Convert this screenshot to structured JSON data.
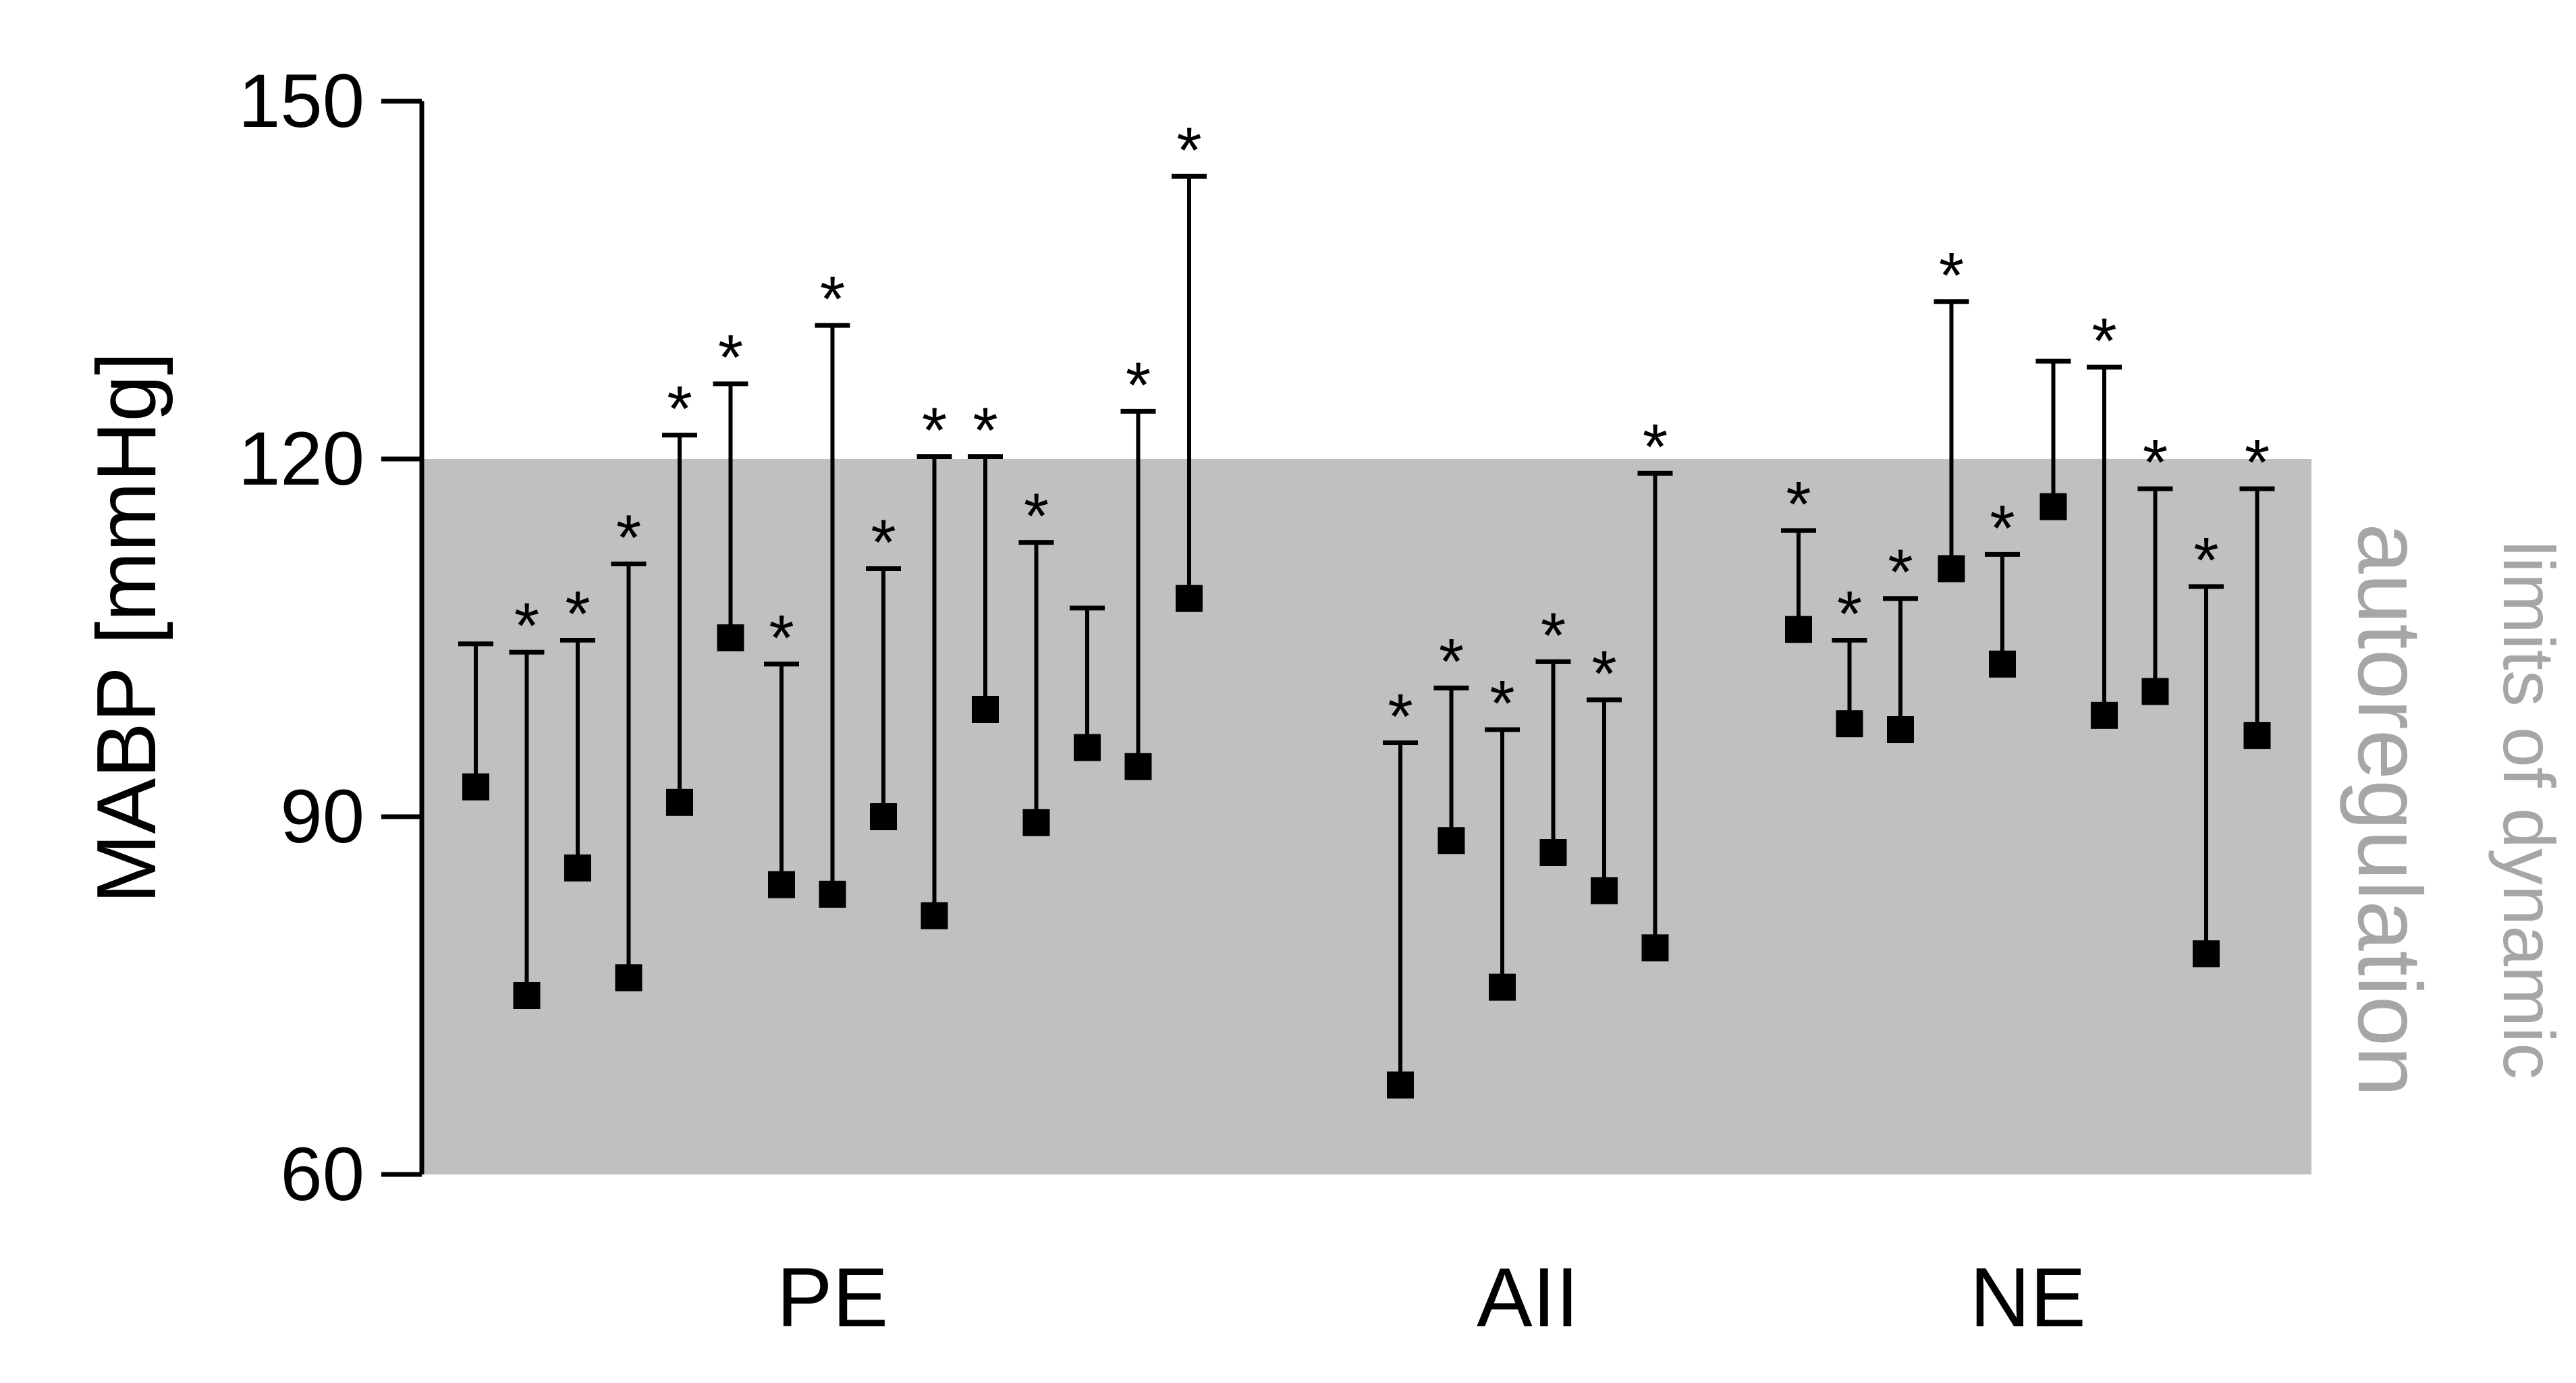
{
  "chart_data": {
    "type": "range",
    "ylabel": "MABP [mmHg]",
    "ylim": [
      60,
      150
    ],
    "yticks": [
      "60",
      "90",
      "120",
      "150"
    ],
    "band": {
      "range": [
        60,
        120
      ],
      "label_line1": "limits of dynamic",
      "label_line2": "autoregulation",
      "color": "#c0c0c0",
      "label_color": "#a6a6a6"
    },
    "groups": [
      {
        "label": "PE",
        "subjects": [
          {
            "baseline": 92.5,
            "peak": 104.5,
            "significant": false
          },
          {
            "baseline": 75.0,
            "peak": 103.8,
            "significant": true
          },
          {
            "baseline": 85.7,
            "peak": 104.8,
            "significant": true
          },
          {
            "baseline": 76.5,
            "peak": 111.2,
            "significant": true
          },
          {
            "baseline": 91.2,
            "peak": 122.0,
            "significant": true
          },
          {
            "baseline": 105.0,
            "peak": 126.3,
            "significant": true
          },
          {
            "baseline": 84.3,
            "peak": 102.8,
            "significant": true
          },
          {
            "baseline": 83.5,
            "peak": 131.2,
            "significant": true
          },
          {
            "baseline": 90.0,
            "peak": 110.8,
            "significant": true
          },
          {
            "baseline": 81.7,
            "peak": 120.2,
            "significant": true
          },
          {
            "baseline": 99.0,
            "peak": 120.2,
            "significant": true
          },
          {
            "baseline": 89.5,
            "peak": 113.0,
            "significant": true
          },
          {
            "baseline": 95.8,
            "peak": 107.5,
            "significant": false
          },
          {
            "baseline": 94.2,
            "peak": 124.0,
            "significant": true
          },
          {
            "baseline": 108.3,
            "peak": 143.7,
            "significant": true
          }
        ]
      },
      {
        "label": "AII",
        "subjects": [
          {
            "baseline": 67.5,
            "peak": 96.2,
            "significant": true
          },
          {
            "baseline": 88.0,
            "peak": 100.8,
            "significant": true
          },
          {
            "baseline": 75.7,
            "peak": 97.3,
            "significant": true
          },
          {
            "baseline": 87.0,
            "peak": 103.0,
            "significant": true
          },
          {
            "baseline": 83.8,
            "peak": 99.8,
            "significant": true
          },
          {
            "baseline": 79.0,
            "peak": 118.8,
            "significant": true
          }
        ]
      },
      {
        "label": "NE",
        "subjects": [
          {
            "baseline": 105.7,
            "peak": 114.0,
            "significant": true
          },
          {
            "baseline": 97.8,
            "peak": 104.8,
            "significant": true
          },
          {
            "baseline": 97.3,
            "peak": 108.3,
            "significant": true
          },
          {
            "baseline": 110.8,
            "peak": 133.2,
            "significant": true
          },
          {
            "baseline": 102.8,
            "peak": 112.0,
            "significant": true
          },
          {
            "baseline": 116.0,
            "peak": 128.2,
            "significant": false
          },
          {
            "baseline": 98.5,
            "peak": 127.7,
            "significant": true
          },
          {
            "baseline": 100.5,
            "peak": 117.5,
            "significant": true
          },
          {
            "baseline": 78.5,
            "peak": 109.3,
            "significant": true
          },
          {
            "baseline": 96.8,
            "peak": 117.5,
            "significant": true
          }
        ]
      }
    ],
    "significance_marker": "*"
  }
}
